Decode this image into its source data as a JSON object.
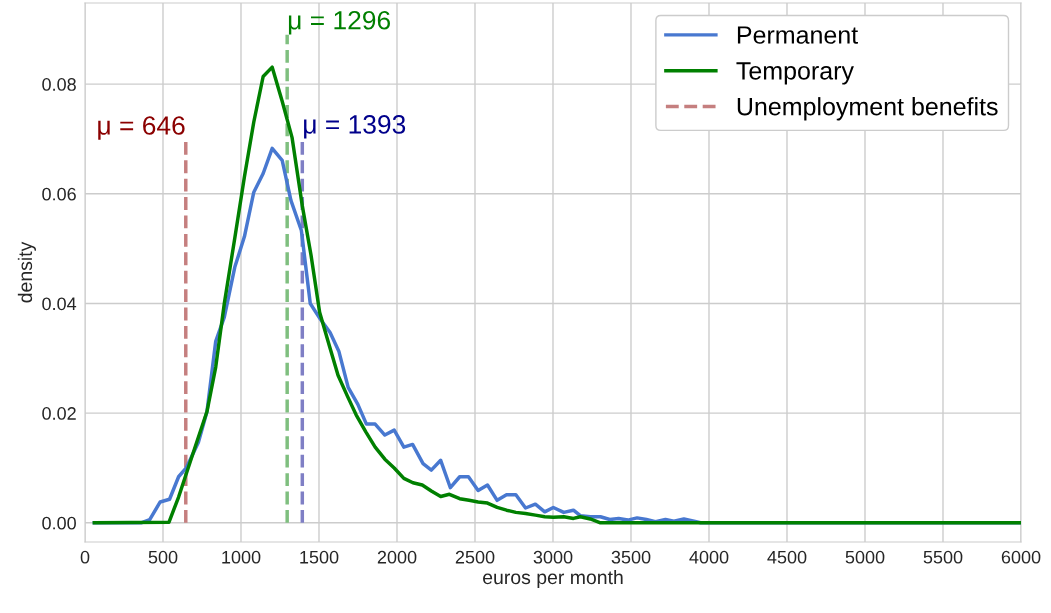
{
  "chart_data": {
    "type": "line",
    "xlabel": "euros per month",
    "ylabel": "density",
    "xlim": [
      0,
      6000
    ],
    "xticks": [
      0,
      500,
      1000,
      1500,
      2000,
      2500,
      3000,
      3500,
      4000,
      4500,
      5000,
      5500,
      6000
    ],
    "ylim": [
      -0.0035,
      0.0948
    ],
    "yticks": [
      {
        "value": 0,
        "label": "0.00"
      },
      {
        "value": 0.02,
        "label": "0.02"
      },
      {
        "value": 0.04,
        "label": "0.04"
      },
      {
        "value": 0.06,
        "label": "0.06"
      },
      {
        "value": 0.08,
        "label": "0.08"
      }
    ],
    "grid": true,
    "legend": "top right",
    "line_style": "solid",
    "marker": "none",
    "series": [
      {
        "name": "Permanent",
        "color": "#4878d0",
        "x": [
          60,
          360,
          415,
          482,
          542,
          600,
          649,
          727,
          782,
          838,
          893,
          960,
          1022,
          1082,
          1142,
          1200,
          1264,
          1320,
          1387,
          1444,
          1507,
          1571,
          1627,
          1687,
          1749,
          1804,
          1860,
          1922,
          1982,
          2044,
          2100,
          2167,
          2220,
          2280,
          2342,
          2402,
          2458,
          2520,
          2580,
          2642,
          2702,
          2762,
          2824,
          2887,
          2947,
          3002,
          3069,
          3131,
          3175,
          3239,
          3304,
          3364,
          3421,
          3479,
          3539,
          3599,
          3657,
          3721,
          3775,
          3839,
          3904,
          3946,
          6000
        ],
        "values": [
          0,
          0,
          0.0006,
          0.0038,
          0.0043,
          0.0084,
          0.01,
          0.0147,
          0.0203,
          0.0331,
          0.0375,
          0.0466,
          0.0522,
          0.0603,
          0.0637,
          0.0683,
          0.0661,
          0.0588,
          0.0533,
          0.04,
          0.0372,
          0.0347,
          0.0313,
          0.0247,
          0.0216,
          0.018,
          0.018,
          0.016,
          0.0169,
          0.0138,
          0.0143,
          0.0108,
          0.0096,
          0.0114,
          0.0064,
          0.0084,
          0.0084,
          0.0059,
          0.0069,
          0.0041,
          0.0051,
          0.0051,
          0.0027,
          0.0034,
          0.002,
          0.0028,
          0.0019,
          0.0023,
          0.0013,
          0.0011,
          0.0011,
          0.0006,
          0.0008,
          0.0005,
          0.0009,
          0.0006,
          0.0002,
          0.0006,
          0.0003,
          0.0007,
          0.0003,
          0,
          0
        ]
      },
      {
        "name": "Temporary",
        "color": "#008000",
        "x": [
          60,
          538,
          600,
          716,
          782,
          838,
          893,
          960,
          1022,
          1082,
          1142,
          1200,
          1264,
          1327,
          1393,
          1449,
          1504,
          1564,
          1622,
          1682,
          1738,
          1800,
          1860,
          1922,
          1982,
          2044,
          2102,
          2162,
          2220,
          2280,
          2336,
          2402,
          2462,
          2520,
          2580,
          2642,
          2702,
          2762,
          2824,
          2887,
          2947,
          3002,
          3069,
          3131,
          3175,
          3239,
          3304,
          6000
        ],
        "values": [
          0,
          0.0001,
          0.0047,
          0.0147,
          0.0203,
          0.0284,
          0.04,
          0.0519,
          0.0631,
          0.0731,
          0.0814,
          0.0831,
          0.0769,
          0.0703,
          0.0578,
          0.0488,
          0.0384,
          0.0325,
          0.0269,
          0.0231,
          0.0197,
          0.0166,
          0.0138,
          0.0116,
          0.01,
          0.0081,
          0.0073,
          0.0069,
          0.0058,
          0.0048,
          0.0052,
          0.0044,
          0.0041,
          0.0038,
          0.0036,
          0.0028,
          0.0023,
          0.0019,
          0.0017,
          0.0014,
          0.0011,
          0.001,
          0.0011,
          0.0008,
          0.0011,
          0.0007,
          0,
          0
        ]
      },
      {
        "name": "Unemployment benefits",
        "color": "#c57f7f",
        "line_style": "dashed",
        "x": [
          646,
          646
        ],
        "values": [
          0,
          0.0698
        ]
      },
      {
        "color": "#7fbf7f",
        "line_style": "dashed",
        "x": [
          1296,
          1296
        ],
        "values": [
          0,
          0.089
        ]
      },
      {
        "color": "#7f7fc5",
        "line_style": "dashed",
        "x": [
          1393,
          1393
        ],
        "values": [
          0,
          0.07
        ]
      }
    ],
    "annotations": [
      {
        "text": "μ = 646",
        "x": 646,
        "y": 0.0698
      },
      {
        "text": "μ = 1296",
        "x": 1296,
        "y": 0.089
      },
      {
        "text": "μ = 1393",
        "x": 1393,
        "y": 0.07
      }
    ]
  }
}
